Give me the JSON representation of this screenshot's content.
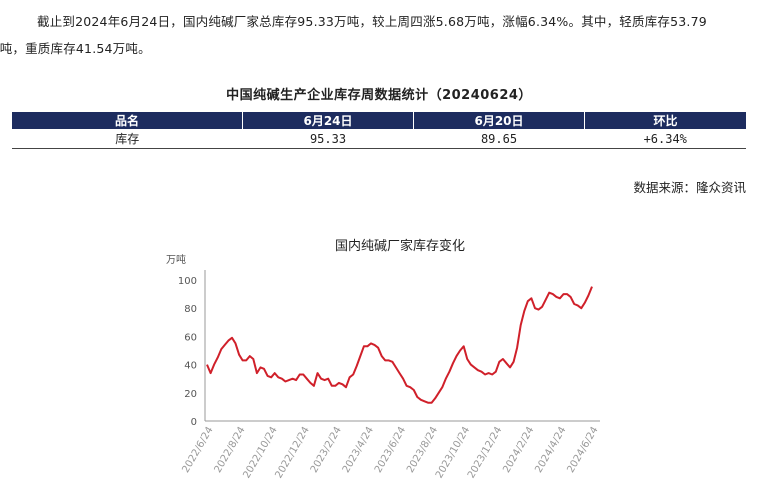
{
  "intro": {
    "line1": "截止到2024年6月24日，国内纯碱厂家总库存95.33万吨，较上周四涨5.68万吨，涨幅6.34%。其中，轻质库存53.79",
    "line2": "万吨，重质库存41.54万吨。"
  },
  "table": {
    "title": "中国纯碱生产企业库存周数据统计（20240624）",
    "headers": [
      "品名",
      "6月24日",
      "6月20日",
      "环比"
    ],
    "rows": [
      [
        "库存",
        "95.33",
        "89.65",
        "+6.34%"
      ]
    ]
  },
  "source": "数据来源：隆众资讯",
  "chart_data": {
    "type": "line",
    "title": "国内纯碱厂家库存变化",
    "ylabel": "万吨",
    "xlabel": "",
    "ylim": [
      0,
      100
    ],
    "yticks": [
      0,
      20,
      40,
      60,
      80,
      100
    ],
    "grid": false,
    "x_tick_labels": [
      "2022/6/24",
      "2022/8/24",
      "2022/10/24",
      "2022/12/24",
      "2023/2/24",
      "2023/4/24",
      "2023/6/24",
      "2023/8/24",
      "2023/10/24",
      "2023/12/24",
      "2024/2/24",
      "2024/4/24",
      "2024/6/24"
    ],
    "line_color": "#d0202a",
    "series": [
      {
        "values": [
          40,
          34,
          40,
          45,
          51,
          54,
          57,
          59,
          55,
          47,
          43,
          43,
          46,
          44,
          34,
          38,
          37,
          32,
          31,
          34,
          31,
          30,
          28,
          29,
          30,
          29,
          33,
          33,
          30,
          27,
          25,
          34,
          30,
          29,
          30,
          25,
          25,
          27,
          26,
          24,
          31,
          33,
          39,
          46,
          53,
          53,
          55,
          54,
          52,
          46,
          43,
          43,
          42,
          38,
          34,
          30,
          25,
          24,
          22,
          17,
          15,
          14,
          13,
          13,
          16,
          20,
          24,
          30,
          35,
          41,
          46,
          50,
          53,
          44,
          40,
          38,
          36,
          35,
          33,
          34,
          33,
          35,
          42,
          44,
          41,
          38,
          42,
          52,
          68,
          78,
          85,
          87,
          80,
          79,
          81,
          86,
          91,
          90,
          88,
          87,
          90,
          90,
          88,
          83,
          82,
          80,
          84,
          89,
          95.33
        ]
      }
    ]
  }
}
